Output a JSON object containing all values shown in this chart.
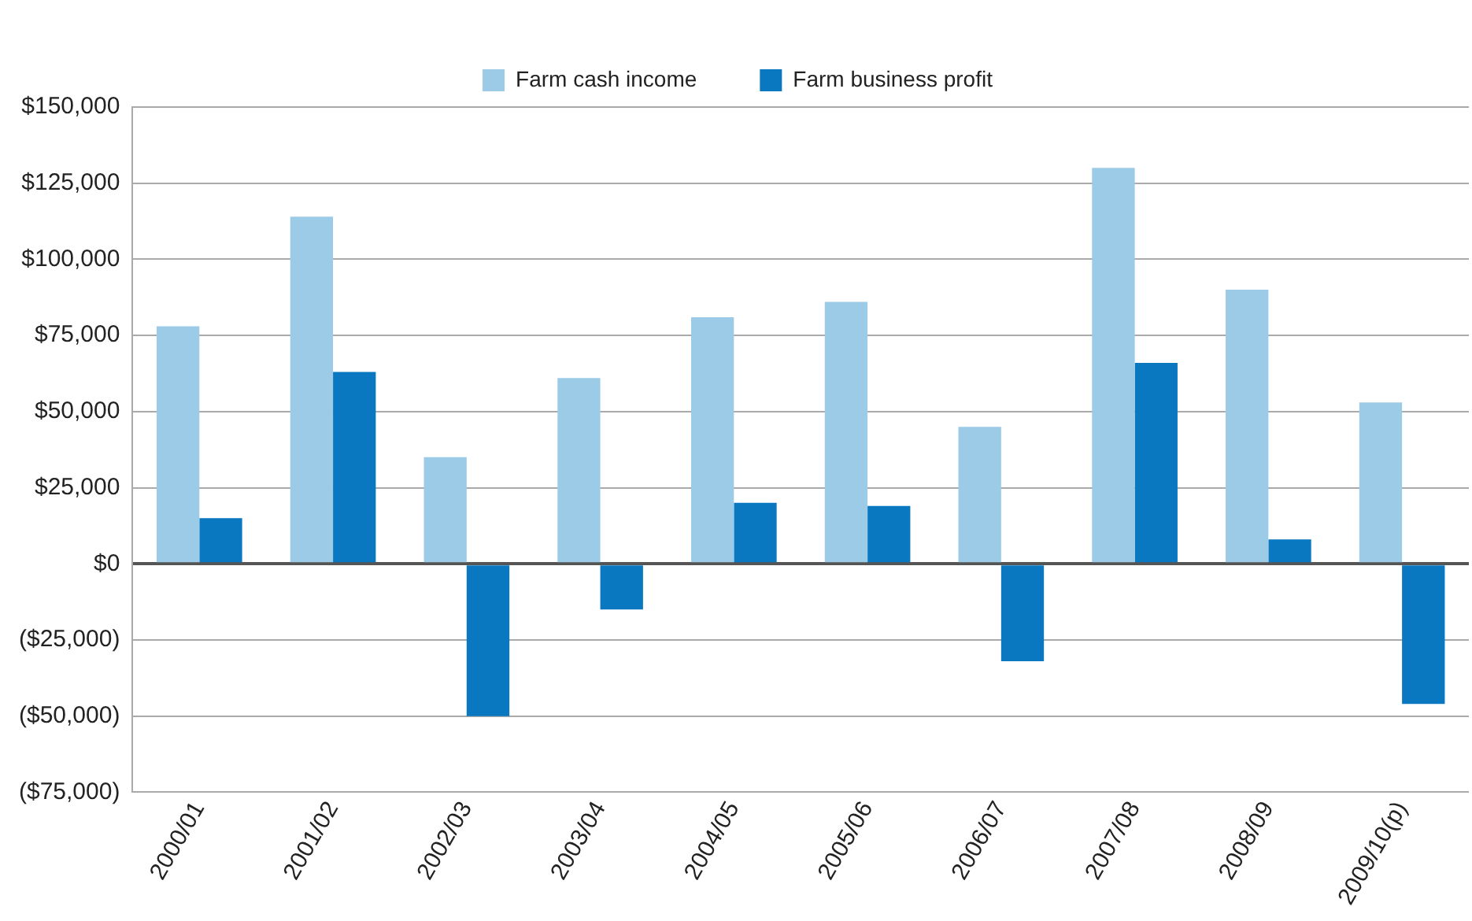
{
  "chart_data": {
    "type": "bar",
    "categories": [
      "2000/01",
      "2001/02",
      "2002/03",
      "2003/04",
      "2004/05",
      "2005/06",
      "2006/07",
      "2007/08",
      "2008/09",
      "2009/10(p)"
    ],
    "series": [
      {
        "name": "Farm cash income",
        "color": "#9ccbe8",
        "values": [
          78000,
          114000,
          35000,
          61000,
          81000,
          86000,
          45000,
          130000,
          90000,
          53000
        ]
      },
      {
        "name": "Farm business profit",
        "color": "#0a78c0",
        "values": [
          15000,
          63000,
          -50000,
          -15000,
          20000,
          19000,
          -32000,
          66000,
          8000,
          -46000
        ]
      }
    ],
    "ylim": [
      -75000,
      150000
    ],
    "yticks": [
      {
        "value": -75000,
        "label": "($75,000)"
      },
      {
        "value": -50000,
        "label": "($50,000)"
      },
      {
        "value": -25000,
        "label": "($25,000)"
      },
      {
        "value": 0,
        "label": "$0"
      },
      {
        "value": 25000,
        "label": "$25,000"
      },
      {
        "value": 50000,
        "label": "$50,000"
      },
      {
        "value": 75000,
        "label": "$75,000"
      },
      {
        "value": 100000,
        "label": "$100,000"
      },
      {
        "value": 125000,
        "label": "$125,000"
      },
      {
        "value": 150000,
        "label": "$150,000"
      }
    ],
    "grid": "y",
    "legend": "top"
  }
}
